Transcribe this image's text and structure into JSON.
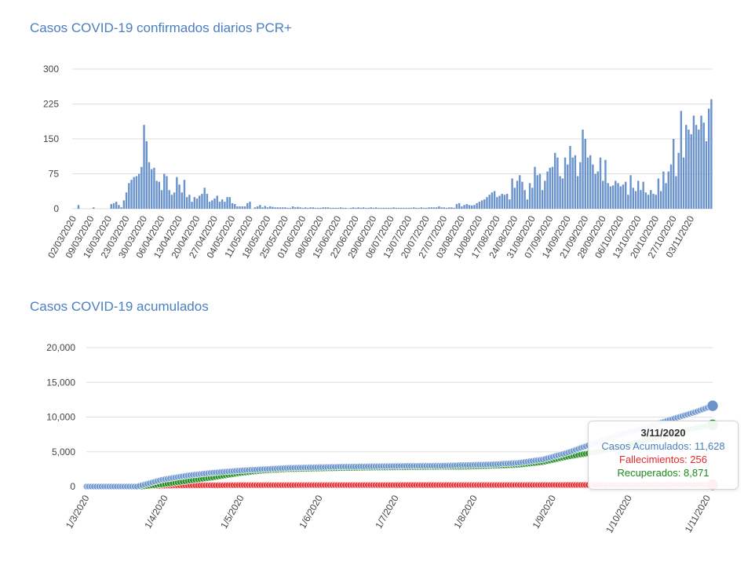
{
  "chart_data": [
    {
      "type": "bar",
      "title": "Casos COVID-19 confirmados diarios PCR+",
      "yticks": [
        0,
        75,
        150,
        225,
        300
      ],
      "ylim": [
        0,
        300
      ],
      "grid": true,
      "color": "#6a93cc",
      "xtick_labels": [
        "02/03/2020",
        "09/03/2020",
        "16/03/2020",
        "23/03/2020",
        "30/03/2020",
        "06/04/2020",
        "13/04/2020",
        "20/04/2020",
        "27/04/2020",
        "04/05/2020",
        "11/05/2020",
        "18/05/2020",
        "25/05/2020",
        "01/06/2020",
        "08/06/2020",
        "15/06/2020",
        "22/06/2020",
        "29/06/2020",
        "06/07/2020",
        "13/07/2020",
        "20/07/2020",
        "27/07/2020",
        "03/08/2020",
        "10/08/2020",
        "17/08/2020",
        "24/08/2020",
        "31/08/2020",
        "07/09/2020",
        "14/09/2020",
        "21/09/2020",
        "28/09/2020",
        "06/10/2020",
        "13/10/2020",
        "20/10/2020",
        "27/10/2020",
        "03/11/2020"
      ],
      "values": [
        0,
        0,
        8,
        0,
        0,
        0,
        0,
        0,
        3,
        0,
        0,
        0,
        0,
        0,
        0,
        10,
        12,
        15,
        8,
        3,
        18,
        35,
        55,
        62,
        68,
        70,
        75,
        90,
        180,
        145,
        100,
        85,
        88,
        60,
        58,
        40,
        75,
        70,
        40,
        30,
        35,
        68,
        52,
        35,
        62,
        25,
        30,
        15,
        25,
        22,
        28,
        32,
        45,
        32,
        15,
        18,
        22,
        28,
        15,
        20,
        15,
        25,
        25,
        12,
        10,
        5,
        5,
        5,
        5,
        12,
        15,
        0,
        3,
        5,
        8,
        3,
        6,
        3,
        5,
        4,
        3,
        3,
        3,
        3,
        3,
        2,
        2,
        5,
        3,
        4,
        3,
        2,
        3,
        2,
        3,
        3,
        2,
        2,
        2,
        3,
        3,
        3,
        2,
        2,
        2,
        2,
        3,
        2,
        2,
        1,
        2,
        3,
        2,
        3,
        2,
        3,
        2,
        2,
        3,
        2,
        3,
        2,
        2,
        2,
        2,
        2,
        2,
        3,
        2,
        2,
        2,
        2,
        2,
        2,
        2,
        3,
        2,
        2,
        3,
        2,
        2,
        3,
        3,
        3,
        3,
        5,
        3,
        3,
        2,
        3,
        3,
        2,
        10,
        12,
        5,
        8,
        10,
        8,
        7,
        8,
        12,
        15,
        18,
        20,
        25,
        30,
        35,
        38,
        25,
        28,
        32,
        30,
        32,
        20,
        65,
        45,
        60,
        72,
        58,
        40,
        20,
        55,
        45,
        90,
        72,
        75,
        40,
        60,
        80,
        88,
        90,
        120,
        110,
        70,
        65,
        110,
        95,
        135,
        110,
        115,
        70,
        100,
        170,
        150,
        110,
        115,
        95,
        75,
        80,
        110,
        60,
        105,
        55,
        48,
        50,
        60,
        55,
        48,
        52,
        58,
        30,
        72,
        45,
        38,
        60,
        40,
        58,
        35,
        30,
        40,
        32,
        30,
        65,
        38,
        80,
        55,
        80,
        95,
        150,
        70,
        120,
        210,
        110,
        180,
        170,
        160,
        200,
        180,
        170,
        200,
        185,
        145,
        215,
        235
      ]
    },
    {
      "type": "scatter",
      "title": "Casos COVID-19 acumulados",
      "yticks": [
        "0",
        "5,000",
        "10,000",
        "15,000",
        "20,000"
      ],
      "ylim": [
        0,
        20000
      ],
      "grid": true,
      "xtick_labels": [
        "1/3/2020",
        "1/4/2020",
        "1/5/2020",
        "1/6/2020",
        "1/7/2020",
        "1/8/2020",
        "1/9/2020",
        "1/10/2020",
        "1/11/2020"
      ],
      "series": [
        {
          "name": "Casos Acumulados",
          "color": "#6a93cc",
          "points": [
            [
              0,
              0
            ],
            [
              20,
              0
            ],
            [
              30,
              1000
            ],
            [
              40,
              1600
            ],
            [
              50,
              2000
            ],
            [
              60,
              2300
            ],
            [
              80,
              2700
            ],
            [
              100,
              2850
            ],
            [
              120,
              2950
            ],
            [
              140,
              3000
            ],
            [
              150,
              3100
            ],
            [
              160,
              3200
            ],
            [
              170,
              3400
            ],
            [
              180,
              3900
            ],
            [
              190,
              4900
            ],
            [
              200,
              6200
            ],
            [
              210,
              7400
            ],
            [
              220,
              8400
            ],
            [
              230,
              9600
            ],
            [
              240,
              10700
            ],
            [
              247,
              11628
            ]
          ]
        },
        {
          "name": "Fallecimientos",
          "color": "#e8262a",
          "points": [
            [
              0,
              0
            ],
            [
              22,
              0
            ],
            [
              27,
              80
            ],
            [
              35,
              150
            ],
            [
              60,
              200
            ],
            [
              120,
              210
            ],
            [
              180,
              220
            ],
            [
              220,
              240
            ],
            [
              247,
              256
            ]
          ]
        },
        {
          "name": "Recuperados",
          "color": "#1a8a1a",
          "points": [
            [
              0,
              0
            ],
            [
              22,
              0
            ],
            [
              30,
              300
            ],
            [
              40,
              800
            ],
            [
              50,
              1300
            ],
            [
              60,
              1900
            ],
            [
              70,
              2300
            ],
            [
              80,
              2500
            ],
            [
              100,
              2650
            ],
            [
              120,
              2750
            ],
            [
              150,
              2850
            ],
            [
              170,
              3100
            ],
            [
              180,
              3500
            ],
            [
              190,
              4300
            ],
            [
              200,
              4900
            ],
            [
              210,
              5600
            ],
            [
              220,
              6600
            ],
            [
              230,
              7500
            ],
            [
              240,
              8400
            ],
            [
              247,
              8871
            ]
          ]
        }
      ],
      "tooltip": {
        "date": "3/11/2020",
        "casos": "Casos Acumulados: 11,628",
        "fallecimientos": "Fallecimientos: 256",
        "recuperados": "Recuperados: 8,871"
      }
    }
  ]
}
